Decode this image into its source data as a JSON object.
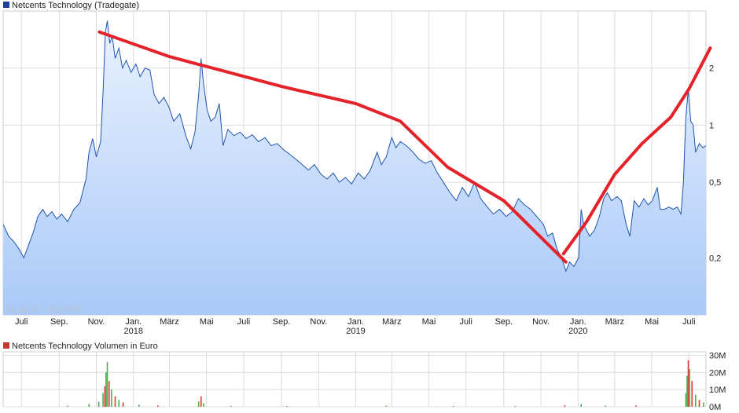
{
  "colors": {
    "price_line": "#1f54b0",
    "fill_top": "#e9f2fe",
    "fill_bottom": "#aac9f8",
    "trend": "#e4222a",
    "grid": "#dcdcdc",
    "vol_up": "#4caf50",
    "vol_down": "#e53935",
    "legend_price": "#1f3f99",
    "legend_volume": "#c0392b"
  },
  "chart_data": [
    {
      "type": "line",
      "title": "Netcents Technology (Tradegate)",
      "date_range": "01.06.17 - 29.07.20",
      "y_scale": "log",
      "y_ticks": [
        0.2,
        0.5,
        1,
        2
      ],
      "y_tick_labels": [
        "0,2",
        "0,5",
        "1",
        "2"
      ],
      "ylim": [
        0.1,
        4.0
      ],
      "x_ticks": [
        {
          "label": "Juli",
          "date": "2017-07-01"
        },
        {
          "label": "Sep.",
          "date": "2017-09-01"
        },
        {
          "label": "Nov.",
          "date": "2017-11-01"
        },
        {
          "label": "Jan.",
          "date": "2018-01-01"
        },
        {
          "label": "März",
          "date": "2018-03-01"
        },
        {
          "label": "Mai",
          "date": "2018-05-01"
        },
        {
          "label": "Juli",
          "date": "2018-07-01"
        },
        {
          "label": "Sep.",
          "date": "2018-09-01"
        },
        {
          "label": "Nov.",
          "date": "2018-11-01"
        },
        {
          "label": "Jan.",
          "date": "2019-01-01"
        },
        {
          "label": "März",
          "date": "2019-03-01"
        },
        {
          "label": "Mai",
          "date": "2019-05-01"
        },
        {
          "label": "Juli",
          "date": "2019-07-01"
        },
        {
          "label": "Sep.",
          "date": "2019-09-01"
        },
        {
          "label": "Nov.",
          "date": "2019-11-01"
        },
        {
          "label": "Jan.",
          "date": "2020-01-01"
        },
        {
          "label": "März",
          "date": "2020-03-01"
        },
        {
          "label": "Mai",
          "date": "2020-05-01"
        },
        {
          "label": "Juli",
          "date": "2020-07-01"
        }
      ],
      "year_labels": [
        {
          "label": "2018",
          "date": "2018-01-01"
        },
        {
          "label": "2019",
          "date": "2019-01-01"
        },
        {
          "label": "2020",
          "date": "2020-01-01"
        }
      ],
      "xlim": [
        "2017-06-01",
        "2020-07-29"
      ],
      "grid": true,
      "series": [
        {
          "values": [
            [
              "2017-06-01",
              0.3
            ],
            [
              "2017-06-10",
              0.26
            ],
            [
              "2017-06-20",
              0.24
            ],
            [
              "2017-06-28",
              0.22
            ],
            [
              "2017-07-05",
              0.2
            ],
            [
              "2017-07-12",
              0.23
            ],
            [
              "2017-07-20",
              0.27
            ],
            [
              "2017-07-28",
              0.33
            ],
            [
              "2017-08-05",
              0.36
            ],
            [
              "2017-08-12",
              0.33
            ],
            [
              "2017-08-20",
              0.35
            ],
            [
              "2017-08-28",
              0.32
            ],
            [
              "2017-09-05",
              0.34
            ],
            [
              "2017-09-15",
              0.31
            ],
            [
              "2017-09-25",
              0.36
            ],
            [
              "2017-10-05",
              0.39
            ],
            [
              "2017-10-15",
              0.52
            ],
            [
              "2017-10-20",
              0.72
            ],
            [
              "2017-10-26",
              0.85
            ],
            [
              "2017-11-01",
              0.68
            ],
            [
              "2017-11-08",
              0.82
            ],
            [
              "2017-11-12",
              1.5
            ],
            [
              "2017-11-16",
              3.1
            ],
            [
              "2017-11-19",
              3.55
            ],
            [
              "2017-11-23",
              2.7
            ],
            [
              "2017-11-27",
              2.95
            ],
            [
              "2017-12-02",
              2.25
            ],
            [
              "2017-12-08",
              2.55
            ],
            [
              "2017-12-14",
              2.0
            ],
            [
              "2017-12-20",
              2.2
            ],
            [
              "2017-12-28",
              1.9
            ],
            [
              "2018-01-05",
              2.1
            ],
            [
              "2018-01-12",
              1.8
            ],
            [
              "2018-01-20",
              2.0
            ],
            [
              "2018-01-28",
              1.95
            ],
            [
              "2018-02-04",
              1.45
            ],
            [
              "2018-02-12",
              1.3
            ],
            [
              "2018-02-20",
              1.4
            ],
            [
              "2018-02-28",
              1.25
            ],
            [
              "2018-03-08",
              1.05
            ],
            [
              "2018-03-18",
              1.15
            ],
            [
              "2018-03-28",
              0.88
            ],
            [
              "2018-04-05",
              0.75
            ],
            [
              "2018-04-12",
              0.92
            ],
            [
              "2018-04-18",
              1.45
            ],
            [
              "2018-04-22",
              2.25
            ],
            [
              "2018-04-26",
              1.65
            ],
            [
              "2018-05-02",
              1.2
            ],
            [
              "2018-05-08",
              1.05
            ],
            [
              "2018-05-15",
              1.1
            ],
            [
              "2018-05-22",
              1.3
            ],
            [
              "2018-05-28",
              0.78
            ],
            [
              "2018-06-05",
              0.95
            ],
            [
              "2018-06-15",
              0.88
            ],
            [
              "2018-06-25",
              0.92
            ],
            [
              "2018-07-05",
              0.85
            ],
            [
              "2018-07-15",
              0.89
            ],
            [
              "2018-07-25",
              0.82
            ],
            [
              "2018-08-05",
              0.86
            ],
            [
              "2018-08-15",
              0.78
            ],
            [
              "2018-08-25",
              0.8
            ],
            [
              "2018-09-05",
              0.74
            ],
            [
              "2018-09-15",
              0.7
            ],
            [
              "2018-09-25",
              0.66
            ],
            [
              "2018-10-05",
              0.62
            ],
            [
              "2018-10-15",
              0.58
            ],
            [
              "2018-10-25",
              0.62
            ],
            [
              "2018-11-05",
              0.55
            ],
            [
              "2018-11-15",
              0.52
            ],
            [
              "2018-11-25",
              0.56
            ],
            [
              "2018-12-05",
              0.5
            ],
            [
              "2018-12-15",
              0.53
            ],
            [
              "2018-12-25",
              0.49
            ],
            [
              "2019-01-05",
              0.56
            ],
            [
              "2019-01-15",
              0.52
            ],
            [
              "2019-01-25",
              0.58
            ],
            [
              "2019-02-05",
              0.72
            ],
            [
              "2019-02-12",
              0.62
            ],
            [
              "2019-02-20",
              0.68
            ],
            [
              "2019-03-01",
              0.86
            ],
            [
              "2019-03-08",
              0.76
            ],
            [
              "2019-03-15",
              0.82
            ],
            [
              "2019-03-25",
              0.78
            ],
            [
              "2019-04-05",
              0.72
            ],
            [
              "2019-04-15",
              0.66
            ],
            [
              "2019-04-25",
              0.63
            ],
            [
              "2019-05-05",
              0.65
            ],
            [
              "2019-05-15",
              0.56
            ],
            [
              "2019-05-25",
              0.5
            ],
            [
              "2019-06-05",
              0.44
            ],
            [
              "2019-06-15",
              0.4
            ],
            [
              "2019-06-25",
              0.47
            ],
            [
              "2019-07-05",
              0.42
            ],
            [
              "2019-07-15",
              0.5
            ],
            [
              "2019-07-25",
              0.41
            ],
            [
              "2019-08-05",
              0.37
            ],
            [
              "2019-08-15",
              0.34
            ],
            [
              "2019-08-25",
              0.36
            ],
            [
              "2019-09-05",
              0.33
            ],
            [
              "2019-09-15",
              0.35
            ],
            [
              "2019-09-25",
              0.41
            ],
            [
              "2019-10-05",
              0.38
            ],
            [
              "2019-10-15",
              0.36
            ],
            [
              "2019-10-25",
              0.33
            ],
            [
              "2019-11-05",
              0.3
            ],
            [
              "2019-11-12",
              0.26
            ],
            [
              "2019-11-20",
              0.27
            ],
            [
              "2019-11-28",
              0.22
            ],
            [
              "2019-12-05",
              0.2
            ],
            [
              "2019-12-12",
              0.17
            ],
            [
              "2019-12-18",
              0.19
            ],
            [
              "2019-12-25",
              0.18
            ],
            [
              "2020-01-02",
              0.2
            ],
            [
              "2020-01-06",
              0.36
            ],
            [
              "2020-01-10",
              0.3
            ],
            [
              "2020-01-20",
              0.26
            ],
            [
              "2020-01-28",
              0.28
            ],
            [
              "2020-02-05",
              0.33
            ],
            [
              "2020-02-12",
              0.41
            ],
            [
              "2020-02-18",
              0.44
            ],
            [
              "2020-02-25",
              0.4
            ],
            [
              "2020-03-05",
              0.42
            ],
            [
              "2020-03-12",
              0.4
            ],
            [
              "2020-03-20",
              0.3
            ],
            [
              "2020-03-26",
              0.26
            ],
            [
              "2020-04-02",
              0.4
            ],
            [
              "2020-04-10",
              0.37
            ],
            [
              "2020-04-18",
              0.41
            ],
            [
              "2020-04-25",
              0.38
            ],
            [
              "2020-05-02",
              0.4
            ],
            [
              "2020-05-10",
              0.47
            ],
            [
              "2020-05-15",
              0.36
            ],
            [
              "2020-05-22",
              0.36
            ],
            [
              "2020-05-29",
              0.37
            ],
            [
              "2020-06-05",
              0.36
            ],
            [
              "2020-06-12",
              0.37
            ],
            [
              "2020-06-18",
              0.34
            ],
            [
              "2020-06-22",
              0.5
            ],
            [
              "2020-06-26",
              1.1
            ],
            [
              "2020-06-30",
              1.55
            ],
            [
              "2020-07-04",
              1.05
            ],
            [
              "2020-07-08",
              1.0
            ],
            [
              "2020-07-12",
              0.72
            ],
            [
              "2020-07-18",
              0.8
            ],
            [
              "2020-07-24",
              0.76
            ],
            [
              "2020-07-29",
              0.78
            ]
          ]
        }
      ],
      "trend_lines": [
        {
          "color": "#e4222a",
          "points": [
            [
              "2017-11-06",
              3.1
            ],
            [
              "2018-03-01",
              2.3
            ],
            [
              "2018-09-01",
              1.6
            ],
            [
              "2019-01-01",
              1.3
            ],
            [
              "2019-03-15",
              1.05
            ],
            [
              "2019-06-01",
              0.6
            ],
            [
              "2019-09-01",
              0.4
            ],
            [
              "2019-12-12",
              0.19
            ]
          ]
        },
        {
          "color": "#e4222a",
          "points": [
            [
              "2019-12-08",
              0.21
            ],
            [
              "2020-01-15",
              0.31
            ],
            [
              "2020-03-01",
              0.55
            ],
            [
              "2020-04-15",
              0.8
            ],
            [
              "2020-06-01",
              1.1
            ],
            [
              "2020-07-01",
              1.55
            ],
            [
              "2020-08-05",
              2.55
            ]
          ]
        }
      ]
    },
    {
      "type": "bar",
      "title": "Netcents Technology Volumen in Euro",
      "y_ticks": [
        0,
        10000000,
        20000000,
        30000000
      ],
      "y_tick_labels": [
        "0M",
        "10M",
        "20M",
        "30M"
      ],
      "ylim": [
        0,
        32000000
      ],
      "grid": true,
      "values": [
        [
          "2017-09-15",
          0.6,
          "up"
        ],
        [
          "2017-10-20",
          1.5,
          "up"
        ],
        [
          "2017-11-05",
          3.0,
          "up"
        ],
        [
          "2017-11-12",
          8.0,
          "up"
        ],
        [
          "2017-11-15",
          12.0,
          "down"
        ],
        [
          "2017-11-17",
          20.0,
          "up"
        ],
        [
          "2017-11-19",
          26.0,
          "up"
        ],
        [
          "2017-11-22",
          15.0,
          "down"
        ],
        [
          "2017-11-26",
          10.0,
          "up"
        ],
        [
          "2017-12-02",
          6.0,
          "down"
        ],
        [
          "2017-12-08",
          4.0,
          "up"
        ],
        [
          "2017-12-15",
          2.5,
          "down"
        ],
        [
          "2018-01-10",
          1.2,
          "up"
        ],
        [
          "2018-02-10",
          0.8,
          "down"
        ],
        [
          "2018-04-18",
          3.0,
          "up"
        ],
        [
          "2018-04-22",
          6.0,
          "down"
        ],
        [
          "2018-04-26",
          2.0,
          "up"
        ],
        [
          "2018-06-10",
          0.5,
          "up"
        ],
        [
          "2018-09-10",
          0.4,
          "down"
        ],
        [
          "2019-02-20",
          0.6,
          "up"
        ],
        [
          "2019-06-10",
          0.4,
          "down"
        ],
        [
          "2019-09-20",
          0.5,
          "up"
        ],
        [
          "2019-12-10",
          0.8,
          "down"
        ],
        [
          "2020-01-06",
          1.5,
          "up"
        ],
        [
          "2020-02-15",
          0.6,
          "up"
        ],
        [
          "2020-04-05",
          0.8,
          "down"
        ],
        [
          "2020-06-26",
          8.0,
          "up"
        ],
        [
          "2020-06-28",
          18.0,
          "up"
        ],
        [
          "2020-06-30",
          27.0,
          "down"
        ],
        [
          "2020-07-02",
          22.0,
          "up"
        ],
        [
          "2020-07-06",
          15.0,
          "down"
        ],
        [
          "2020-07-12",
          7.0,
          "up"
        ],
        [
          "2020-07-18",
          4.0,
          "down"
        ],
        [
          "2020-07-25",
          2.5,
          "up"
        ]
      ]
    }
  ]
}
